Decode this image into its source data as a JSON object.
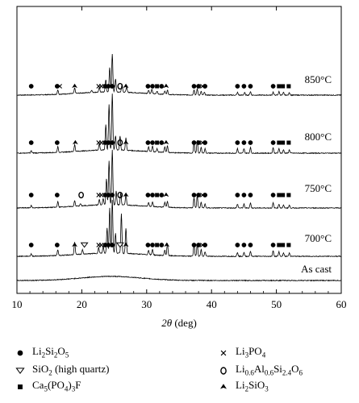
{
  "chart_data": {
    "type": "line",
    "xlabel_symbol": "2θ",
    "xlabel_unit": "(deg)",
    "xlim": [
      10,
      60
    ],
    "xticks": [
      "10",
      "20",
      "30",
      "40",
      "50",
      "60"
    ],
    "grid": false,
    "legend_position": "bottom",
    "series": [
      {
        "name": "850°C",
        "peaks": [
          [
            16.3,
            0.1
          ],
          [
            18.9,
            0.12
          ],
          [
            21.5,
            0.05
          ],
          [
            22.7,
            0.1
          ],
          [
            23.7,
            0.28
          ],
          [
            24.3,
            0.55
          ],
          [
            24.7,
            0.85
          ],
          [
            25.2,
            0.3
          ],
          [
            26.2,
            0.18
          ],
          [
            26.9,
            0.12
          ],
          [
            30.3,
            0.08
          ],
          [
            30.8,
            0.1
          ],
          [
            31.6,
            0.06
          ],
          [
            32.8,
            0.08
          ],
          [
            33.2,
            0.1
          ],
          [
            37.3,
            0.12
          ],
          [
            37.8,
            0.14
          ],
          [
            38.4,
            0.08
          ],
          [
            38.9,
            0.06
          ],
          [
            44.0,
            0.06
          ],
          [
            45.1,
            0.06
          ],
          [
            46.0,
            0.08
          ],
          [
            49.5,
            0.07
          ],
          [
            50.4,
            0.08
          ],
          [
            51.1,
            0.06
          ],
          [
            52.0,
            0.06
          ]
        ],
        "markers": [
          [
            "circle",
            12.2
          ],
          [
            "circle",
            16.2
          ],
          [
            "cross",
            16.6
          ],
          [
            "triangle",
            18.9
          ],
          [
            "cross",
            22.6
          ],
          [
            "cross",
            23.0
          ],
          [
            "circle",
            23.6
          ],
          [
            "circle",
            24.1
          ],
          [
            "circle",
            24.7
          ],
          [
            "ring",
            25.9
          ],
          [
            "triangle",
            26.8
          ],
          [
            "circle",
            30.2
          ],
          [
            "circle",
            30.9
          ],
          [
            "square",
            31.6
          ],
          [
            "circle",
            32.3
          ],
          [
            "triangle",
            33.0
          ],
          [
            "circle",
            37.3
          ],
          [
            "circle",
            38.0
          ],
          [
            "cross",
            38.6
          ],
          [
            "circle",
            39.0
          ],
          [
            "circle",
            44.0
          ],
          [
            "circle",
            45.0
          ],
          [
            "circle",
            46.0
          ],
          [
            "circle",
            49.5
          ],
          [
            "square",
            50.4
          ],
          [
            "square",
            51.0
          ],
          [
            "square",
            51.9
          ]
        ]
      },
      {
        "name": "800°C",
        "peaks": [
          [
            12.2,
            0.04
          ],
          [
            16.3,
            0.1
          ],
          [
            18.9,
            0.12
          ],
          [
            22.7,
            0.12
          ],
          [
            23.7,
            0.45
          ],
          [
            24.2,
            0.8
          ],
          [
            24.7,
            1.0
          ],
          [
            25.2,
            0.25
          ],
          [
            25.9,
            0.25
          ],
          [
            26.8,
            0.22
          ],
          [
            30.3,
            0.08
          ],
          [
            30.9,
            0.1
          ],
          [
            31.6,
            0.06
          ],
          [
            32.8,
            0.1
          ],
          [
            33.2,
            0.12
          ],
          [
            37.3,
            0.18
          ],
          [
            37.8,
            0.22
          ],
          [
            38.4,
            0.1
          ],
          [
            39.0,
            0.08
          ],
          [
            44.0,
            0.08
          ],
          [
            45.0,
            0.08
          ],
          [
            46.0,
            0.1
          ],
          [
            49.5,
            0.1
          ],
          [
            50.4,
            0.08
          ],
          [
            51.1,
            0.06
          ],
          [
            52.0,
            0.06
          ]
        ],
        "markers": [
          [
            "circle",
            12.2
          ],
          [
            "circle",
            16.2
          ],
          [
            "triangle",
            19.0
          ],
          [
            "cross",
            22.6
          ],
          [
            "cross",
            23.0
          ],
          [
            "circle",
            23.6
          ],
          [
            "circle",
            24.1
          ],
          [
            "circle",
            24.7
          ],
          [
            "ring",
            25.9
          ],
          [
            "triangle",
            26.8
          ],
          [
            "circle",
            30.2
          ],
          [
            "circle",
            30.9
          ],
          [
            "square",
            31.6
          ],
          [
            "circle",
            32.3
          ],
          [
            "triangle",
            33.0
          ],
          [
            "circle",
            37.3
          ],
          [
            "circle",
            38.0
          ],
          [
            "cross",
            38.6
          ],
          [
            "circle",
            39.0
          ],
          [
            "circle",
            44.0
          ],
          [
            "circle",
            45.0
          ],
          [
            "circle",
            46.0
          ],
          [
            "circle",
            49.5
          ],
          [
            "square",
            50.4
          ],
          [
            "square",
            51.0
          ],
          [
            "square",
            51.9
          ]
        ]
      },
      {
        "name": "750°C",
        "peaks": [
          [
            12.2,
            0.04
          ],
          [
            16.3,
            0.1
          ],
          [
            18.9,
            0.1
          ],
          [
            19.8,
            0.04
          ],
          [
            22.7,
            0.1
          ],
          [
            23.3,
            0.12
          ],
          [
            23.8,
            0.48
          ],
          [
            24.2,
            0.8
          ],
          [
            24.7,
            1.0
          ],
          [
            25.3,
            0.25
          ],
          [
            26.0,
            0.22
          ],
          [
            26.8,
            0.2
          ],
          [
            30.3,
            0.07
          ],
          [
            30.9,
            0.09
          ],
          [
            32.8,
            0.09
          ],
          [
            33.2,
            0.11
          ],
          [
            37.3,
            0.18
          ],
          [
            37.8,
            0.22
          ],
          [
            38.4,
            0.1
          ],
          [
            39.0,
            0.07
          ],
          [
            44.0,
            0.07
          ],
          [
            45.0,
            0.07
          ],
          [
            46.0,
            0.09
          ],
          [
            49.5,
            0.09
          ],
          [
            50.4,
            0.07
          ],
          [
            51.1,
            0.05
          ],
          [
            52.0,
            0.05
          ]
        ],
        "markers": [
          [
            "circle",
            12.2
          ],
          [
            "circle",
            16.2
          ],
          [
            "ring",
            19.9
          ],
          [
            "cross",
            22.6
          ],
          [
            "cross",
            23.0
          ],
          [
            "circle",
            23.6
          ],
          [
            "circle",
            24.1
          ],
          [
            "circle",
            24.7
          ],
          [
            "ring",
            25.9
          ],
          [
            "triangle",
            26.8
          ],
          [
            "circle",
            30.2
          ],
          [
            "circle",
            30.9
          ],
          [
            "square",
            31.6
          ],
          [
            "circle",
            32.3
          ],
          [
            "triangle",
            33.0
          ],
          [
            "circle",
            37.3
          ],
          [
            "circle",
            38.0
          ],
          [
            "cross",
            38.6
          ],
          [
            "circle",
            39.0
          ],
          [
            "circle",
            44.0
          ],
          [
            "circle",
            45.0
          ],
          [
            "circle",
            46.0
          ],
          [
            "circle",
            49.5
          ],
          [
            "square",
            50.4
          ],
          [
            "square",
            51.0
          ],
          [
            "square",
            51.9
          ]
        ]
      },
      {
        "name": "700°C",
        "peaks": [
          [
            12.2,
            0.04
          ],
          [
            16.3,
            0.1
          ],
          [
            18.9,
            0.22
          ],
          [
            20.1,
            0.08
          ],
          [
            22.6,
            0.1
          ],
          [
            23.3,
            0.12
          ],
          [
            23.9,
            0.45
          ],
          [
            24.3,
            0.8
          ],
          [
            24.7,
            0.95
          ],
          [
            25.2,
            0.35
          ],
          [
            26.1,
            0.7
          ],
          [
            26.8,
            0.45
          ],
          [
            30.3,
            0.08
          ],
          [
            30.9,
            0.1
          ],
          [
            32.8,
            0.1
          ],
          [
            33.2,
            0.22
          ],
          [
            37.3,
            0.22
          ],
          [
            37.8,
            0.22
          ],
          [
            38.4,
            0.12
          ],
          [
            39.0,
            0.08
          ],
          [
            44.0,
            0.07
          ],
          [
            45.0,
            0.07
          ],
          [
            46.0,
            0.09
          ],
          [
            49.5,
            0.1
          ],
          [
            50.4,
            0.08
          ],
          [
            51.1,
            0.06
          ],
          [
            52.0,
            0.06
          ]
        ],
        "markers": [
          [
            "circle",
            12.2
          ],
          [
            "circle",
            16.2
          ],
          [
            "triangle",
            18.9
          ],
          [
            "nabla",
            20.4
          ],
          [
            "cross",
            22.6
          ],
          [
            "cross",
            23.0
          ],
          [
            "circle",
            23.6
          ],
          [
            "circle",
            24.1
          ],
          [
            "circle",
            24.7
          ],
          [
            "nabla",
            25.9
          ],
          [
            "triangle",
            26.8
          ],
          [
            "circle",
            30.2
          ],
          [
            "circle",
            30.9
          ],
          [
            "square",
            31.6
          ],
          [
            "circle",
            32.3
          ],
          [
            "triangle",
            33.1
          ],
          [
            "circle",
            37.3
          ],
          [
            "circle",
            38.0
          ],
          [
            "cross",
            38.6
          ],
          [
            "circle",
            39.0
          ],
          [
            "circle",
            44.0
          ],
          [
            "circle",
            45.0
          ],
          [
            "circle",
            46.0
          ],
          [
            "circle",
            49.5
          ],
          [
            "square",
            50.4
          ],
          [
            "square",
            51.0
          ],
          [
            "square",
            51.9
          ]
        ]
      },
      {
        "name": "As cast",
        "amorphous": true
      }
    ]
  },
  "legend": [
    {
      "marker": "circle",
      "parts": [
        [
          "Li",
          ""
        ],
        [
          "2",
          "sub"
        ],
        [
          "Si",
          ""
        ],
        [
          "2",
          "sub"
        ],
        [
          "O",
          ""
        ],
        [
          "5",
          "sub"
        ]
      ]
    },
    {
      "marker": "cross",
      "parts": [
        [
          "Li",
          ""
        ],
        [
          "3",
          "sub"
        ],
        [
          "PO",
          ""
        ],
        [
          "4",
          "sub"
        ]
      ]
    },
    {
      "marker": "nabla",
      "parts": [
        [
          "SiO",
          ""
        ],
        [
          "2",
          "sub"
        ],
        [
          " (high quartz)",
          ""
        ]
      ]
    },
    {
      "marker": "ring",
      "parts": [
        [
          "Li",
          ""
        ],
        [
          "0.6",
          "sub"
        ],
        [
          "Al",
          ""
        ],
        [
          "0.6",
          "sub"
        ],
        [
          "Si",
          ""
        ],
        [
          "2.4",
          "sub"
        ],
        [
          "O",
          ""
        ],
        [
          "6",
          "sub"
        ]
      ]
    },
    {
      "marker": "square",
      "parts": [
        [
          "Ca",
          ""
        ],
        [
          "5",
          "sub"
        ],
        [
          "(PO",
          ""
        ],
        [
          "4",
          "sub"
        ],
        [
          ")",
          ""
        ],
        [
          "3",
          "sub"
        ],
        [
          "F",
          ""
        ]
      ]
    },
    {
      "marker": "triangle",
      "parts": [
        [
          "Li",
          ""
        ],
        [
          "2",
          "sub"
        ],
        [
          "SiO",
          ""
        ],
        [
          "3",
          "sub"
        ]
      ]
    }
  ]
}
